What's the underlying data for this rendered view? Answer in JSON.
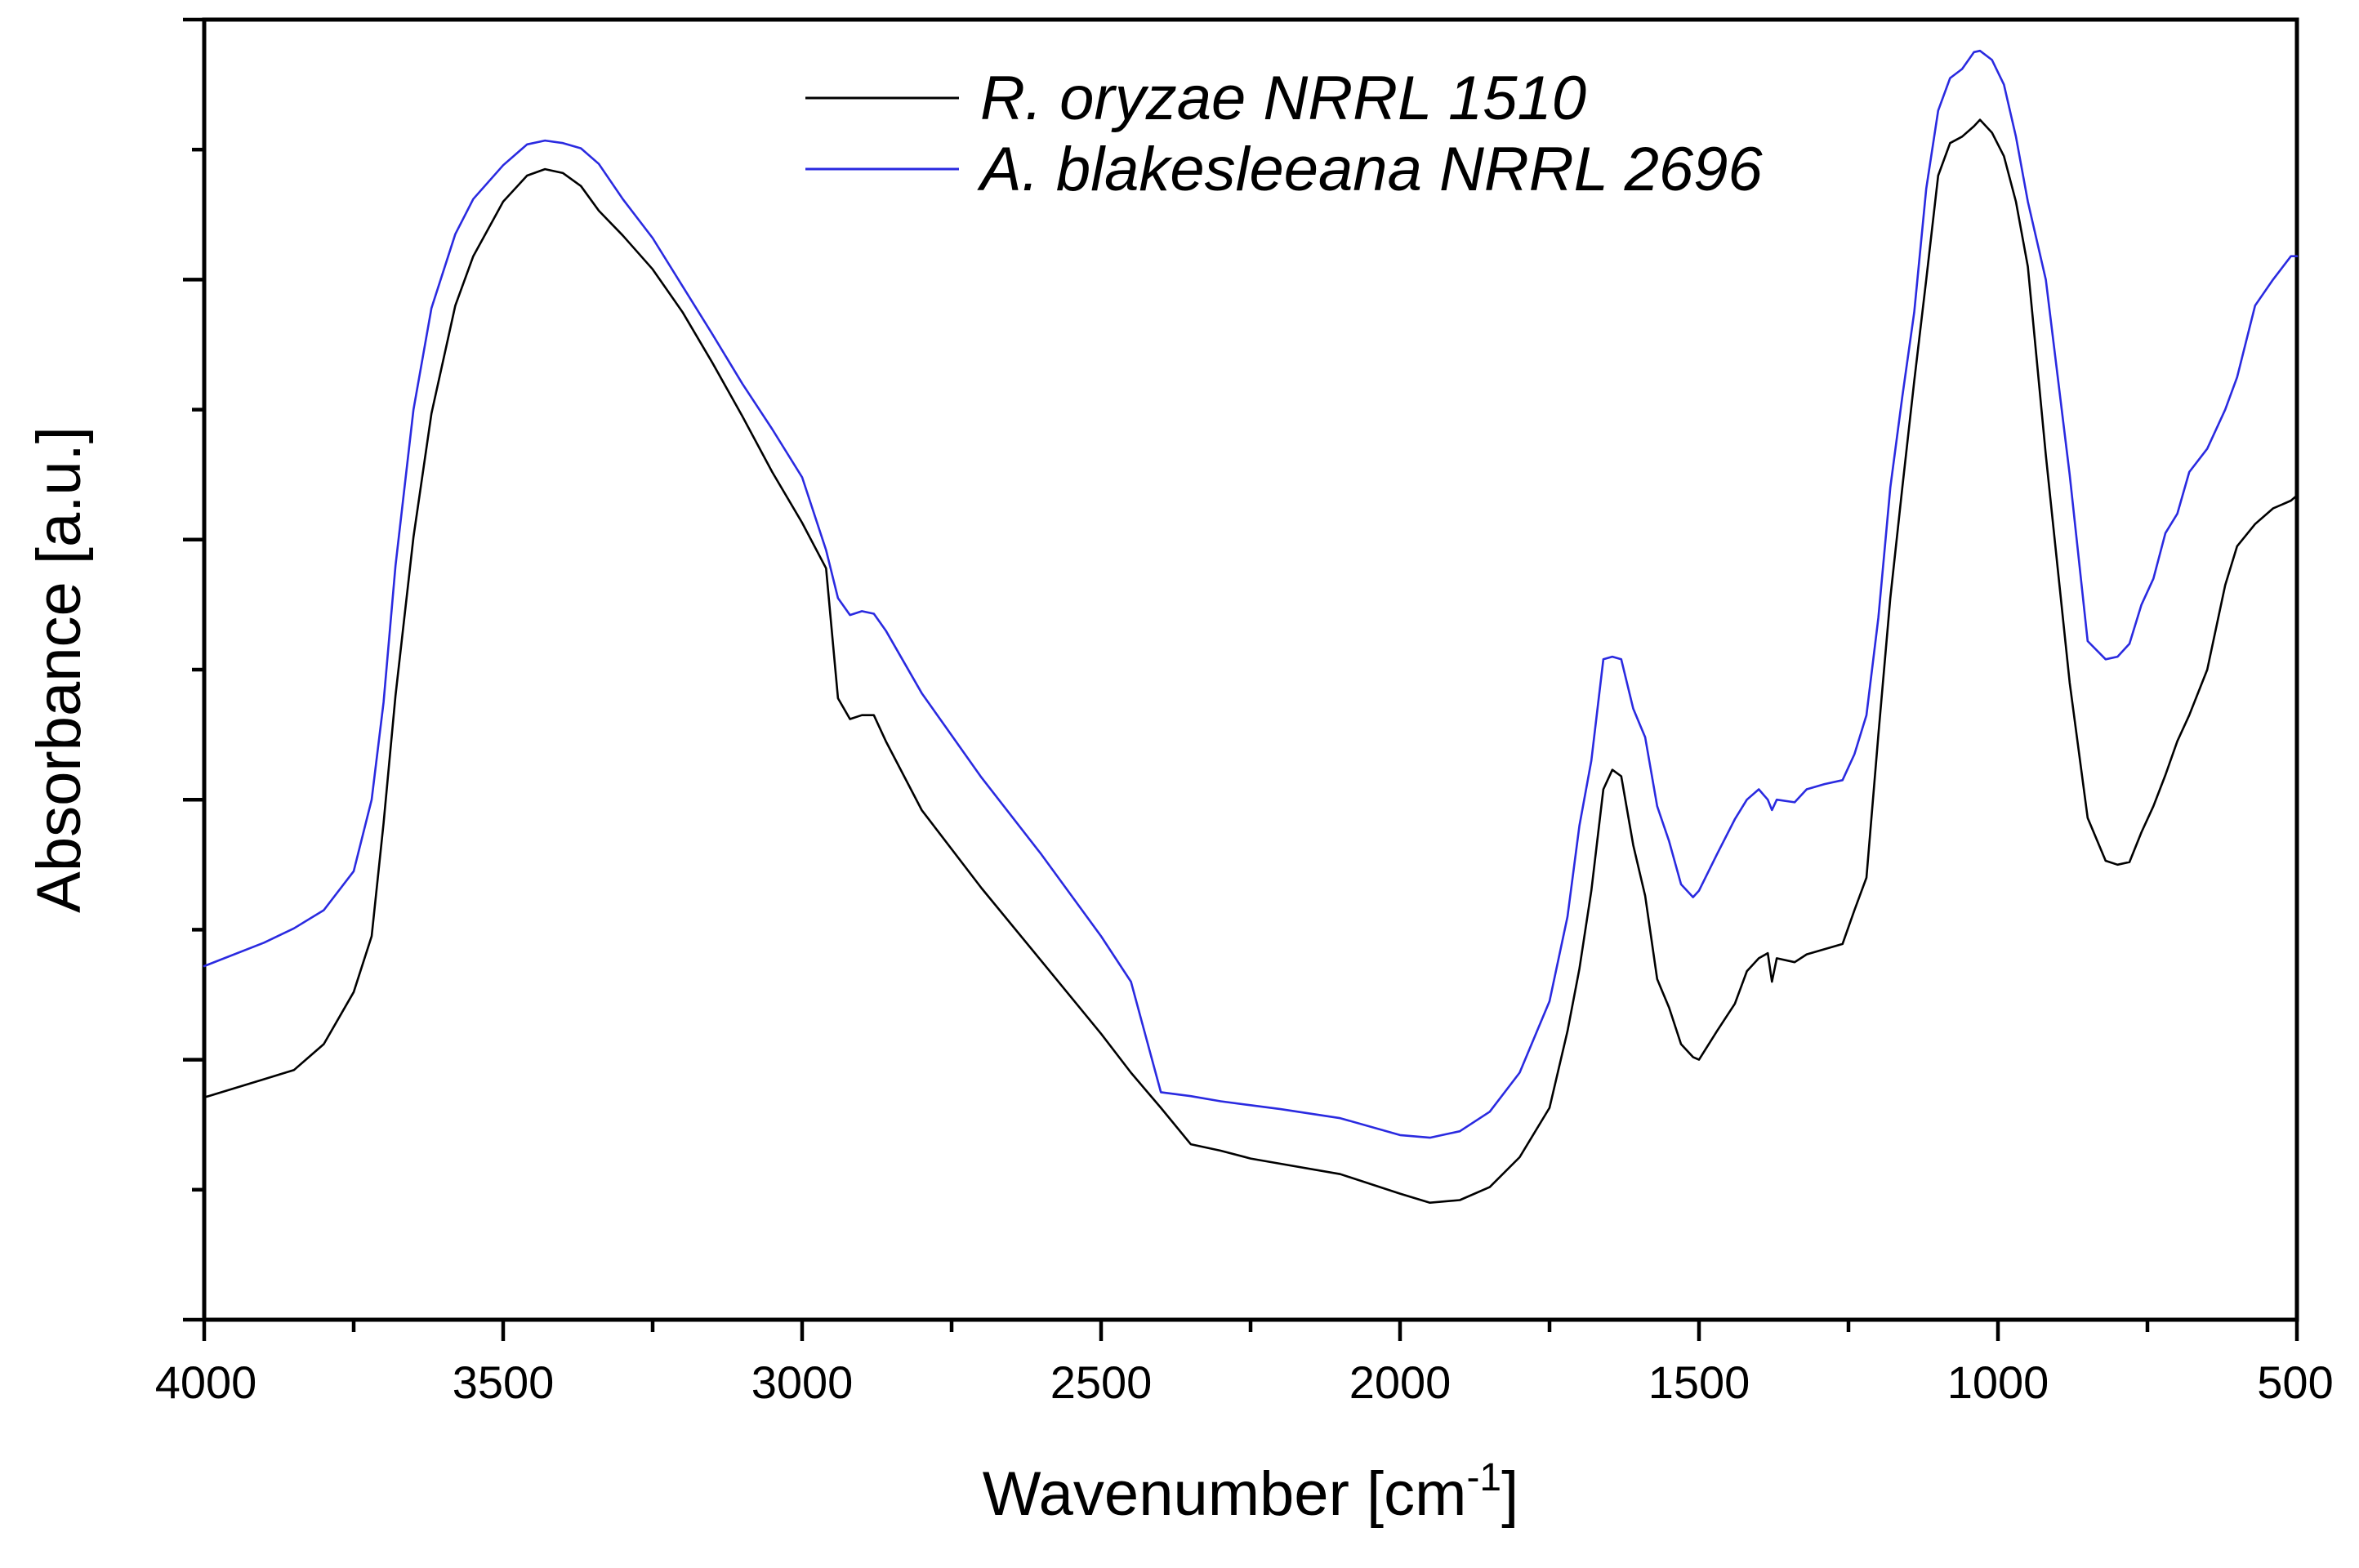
{
  "chart_data": {
    "type": "line",
    "title": "",
    "xlabel": "Wavenumber [cm",
    "xlabel_superscript": "-1",
    "xlabel_suffix": "]",
    "ylabel": "Absorbance [a.u.]",
    "xlim": [
      4000,
      500
    ],
    "ylim": [
      0,
      1
    ],
    "x_reversed": true,
    "x_ticks": [
      4000,
      3500,
      3000,
      2500,
      2000,
      1500,
      1000,
      500
    ],
    "x_tick_labels": [
      "4000",
      "3500",
      "3000",
      "2500",
      "2000",
      "1500",
      "1000",
      "500"
    ],
    "y_tick_labels_shown": false,
    "legend_position": "top-center",
    "series": [
      {
        "name": "R. oryzae NRRL 1510",
        "color": "#000000",
        "points": [
          [
            4000,
            0.171
          ],
          [
            3900,
            0.185
          ],
          [
            3850,
            0.192
          ],
          [
            3800,
            0.212
          ],
          [
            3750,
            0.252
          ],
          [
            3720,
            0.295
          ],
          [
            3700,
            0.382
          ],
          [
            3680,
            0.48
          ],
          [
            3650,
            0.602
          ],
          [
            3620,
            0.697
          ],
          [
            3580,
            0.78
          ],
          [
            3550,
            0.818
          ],
          [
            3500,
            0.86
          ],
          [
            3460,
            0.88
          ],
          [
            3430,
            0.885
          ],
          [
            3400,
            0.882
          ],
          [
            3370,
            0.872
          ],
          [
            3340,
            0.853
          ],
          [
            3300,
            0.834
          ],
          [
            3250,
            0.808
          ],
          [
            3200,
            0.775
          ],
          [
            3150,
            0.736
          ],
          [
            3100,
            0.695
          ],
          [
            3050,
            0.652
          ],
          [
            3000,
            0.613
          ],
          [
            2960,
            0.578
          ],
          [
            2940,
            0.478
          ],
          [
            2920,
            0.462
          ],
          [
            2900,
            0.465
          ],
          [
            2880,
            0.465
          ],
          [
            2860,
            0.445
          ],
          [
            2800,
            0.392
          ],
          [
            2700,
            0.332
          ],
          [
            2600,
            0.276
          ],
          [
            2500,
            0.22
          ],
          [
            2450,
            0.19
          ],
          [
            2400,
            0.163
          ],
          [
            2350,
            0.135
          ],
          [
            2300,
            0.13
          ],
          [
            2250,
            0.124
          ],
          [
            2200,
            0.12
          ],
          [
            2100,
            0.112
          ],
          [
            2000,
            0.097
          ],
          [
            1950,
            0.09
          ],
          [
            1900,
            0.092
          ],
          [
            1850,
            0.102
          ],
          [
            1800,
            0.125
          ],
          [
            1750,
            0.163
          ],
          [
            1720,
            0.222
          ],
          [
            1700,
            0.27
          ],
          [
            1680,
            0.33
          ],
          [
            1660,
            0.408
          ],
          [
            1645,
            0.423
          ],
          [
            1630,
            0.418
          ],
          [
            1610,
            0.365
          ],
          [
            1590,
            0.326
          ],
          [
            1570,
            0.262
          ],
          [
            1550,
            0.24
          ],
          [
            1530,
            0.212
          ],
          [
            1510,
            0.202
          ],
          [
            1500,
            0.2
          ],
          [
            1470,
            0.222
          ],
          [
            1440,
            0.243
          ],
          [
            1420,
            0.268
          ],
          [
            1400,
            0.278
          ],
          [
            1385,
            0.282
          ],
          [
            1378,
            0.26
          ],
          [
            1370,
            0.278
          ],
          [
            1340,
            0.275
          ],
          [
            1320,
            0.281
          ],
          [
            1290,
            0.285
          ],
          [
            1260,
            0.289
          ],
          [
            1240,
            0.315
          ],
          [
            1220,
            0.34
          ],
          [
            1200,
            0.45
          ],
          [
            1180,
            0.555
          ],
          [
            1160,
            0.64
          ],
          [
            1140,
            0.722
          ],
          [
            1120,
            0.8
          ],
          [
            1100,
            0.88
          ],
          [
            1080,
            0.905
          ],
          [
            1060,
            0.91
          ],
          [
            1040,
            0.918
          ],
          [
            1030,
            0.923
          ],
          [
            1010,
            0.913
          ],
          [
            990,
            0.895
          ],
          [
            970,
            0.86
          ],
          [
            950,
            0.81
          ],
          [
            920,
            0.665
          ],
          [
            880,
            0.49
          ],
          [
            850,
            0.386
          ],
          [
            820,
            0.353
          ],
          [
            800,
            0.35
          ],
          [
            780,
            0.352
          ],
          [
            760,
            0.375
          ],
          [
            740,
            0.395
          ],
          [
            720,
            0.419
          ],
          [
            700,
            0.445
          ],
          [
            680,
            0.465
          ],
          [
            650,
            0.5
          ],
          [
            620,
            0.565
          ],
          [
            600,
            0.595
          ],
          [
            570,
            0.612
          ],
          [
            540,
            0.624
          ],
          [
            510,
            0.63
          ],
          [
            500,
            0.634
          ]
        ]
      },
      {
        "name": "A. blakesleeana NRRL 2696",
        "color": "#2a2ae0",
        "points": [
          [
            4000,
            0.272
          ],
          [
            3900,
            0.29
          ],
          [
            3850,
            0.301
          ],
          [
            3800,
            0.315
          ],
          [
            3750,
            0.345
          ],
          [
            3720,
            0.4
          ],
          [
            3700,
            0.475
          ],
          [
            3680,
            0.58
          ],
          [
            3650,
            0.7
          ],
          [
            3620,
            0.778
          ],
          [
            3580,
            0.835
          ],
          [
            3550,
            0.862
          ],
          [
            3500,
            0.888
          ],
          [
            3460,
            0.904
          ],
          [
            3430,
            0.907
          ],
          [
            3400,
            0.905
          ],
          [
            3370,
            0.901
          ],
          [
            3340,
            0.889
          ],
          [
            3300,
            0.862
          ],
          [
            3250,
            0.832
          ],
          [
            3200,
            0.795
          ],
          [
            3150,
            0.758
          ],
          [
            3100,
            0.72
          ],
          [
            3050,
            0.685
          ],
          [
            3000,
            0.648
          ],
          [
            2960,
            0.592
          ],
          [
            2940,
            0.555
          ],
          [
            2920,
            0.542
          ],
          [
            2900,
            0.545
          ],
          [
            2880,
            0.543
          ],
          [
            2860,
            0.53
          ],
          [
            2800,
            0.482
          ],
          [
            2700,
            0.417
          ],
          [
            2600,
            0.358
          ],
          [
            2500,
            0.295
          ],
          [
            2450,
            0.26
          ],
          [
            2400,
            0.175
          ],
          [
            2350,
            0.172
          ],
          [
            2300,
            0.168
          ],
          [
            2250,
            0.165
          ],
          [
            2200,
            0.162
          ],
          [
            2100,
            0.155
          ],
          [
            2000,
            0.142
          ],
          [
            1950,
            0.14
          ],
          [
            1900,
            0.145
          ],
          [
            1850,
            0.16
          ],
          [
            1800,
            0.19
          ],
          [
            1750,
            0.245
          ],
          [
            1720,
            0.31
          ],
          [
            1700,
            0.38
          ],
          [
            1680,
            0.43
          ],
          [
            1660,
            0.508
          ],
          [
            1645,
            0.51
          ],
          [
            1630,
            0.508
          ],
          [
            1610,
            0.47
          ],
          [
            1590,
            0.448
          ],
          [
            1570,
            0.395
          ],
          [
            1550,
            0.368
          ],
          [
            1530,
            0.335
          ],
          [
            1510,
            0.325
          ],
          [
            1500,
            0.33
          ],
          [
            1470,
            0.358
          ],
          [
            1440,
            0.385
          ],
          [
            1420,
            0.4
          ],
          [
            1400,
            0.408
          ],
          [
            1385,
            0.4
          ],
          [
            1378,
            0.392
          ],
          [
            1370,
            0.4
          ],
          [
            1340,
            0.398
          ],
          [
            1320,
            0.408
          ],
          [
            1290,
            0.412
          ],
          [
            1260,
            0.415
          ],
          [
            1240,
            0.435
          ],
          [
            1220,
            0.465
          ],
          [
            1200,
            0.54
          ],
          [
            1180,
            0.64
          ],
          [
            1160,
            0.71
          ],
          [
            1140,
            0.775
          ],
          [
            1120,
            0.87
          ],
          [
            1100,
            0.93
          ],
          [
            1080,
            0.955
          ],
          [
            1060,
            0.962
          ],
          [
            1040,
            0.975
          ],
          [
            1030,
            0.976
          ],
          [
            1010,
            0.969
          ],
          [
            990,
            0.95
          ],
          [
            970,
            0.91
          ],
          [
            950,
            0.86
          ],
          [
            920,
            0.8
          ],
          [
            880,
            0.65
          ],
          [
            850,
            0.522
          ],
          [
            820,
            0.508
          ],
          [
            800,
            0.51
          ],
          [
            780,
            0.52
          ],
          [
            760,
            0.55
          ],
          [
            740,
            0.57
          ],
          [
            720,
            0.605
          ],
          [
            700,
            0.62
          ],
          [
            680,
            0.652
          ],
          [
            650,
            0.67
          ],
          [
            620,
            0.7
          ],
          [
            600,
            0.725
          ],
          [
            570,
            0.78
          ],
          [
            540,
            0.8
          ],
          [
            510,
            0.818
          ],
          [
            500,
            0.818
          ]
        ]
      }
    ]
  }
}
